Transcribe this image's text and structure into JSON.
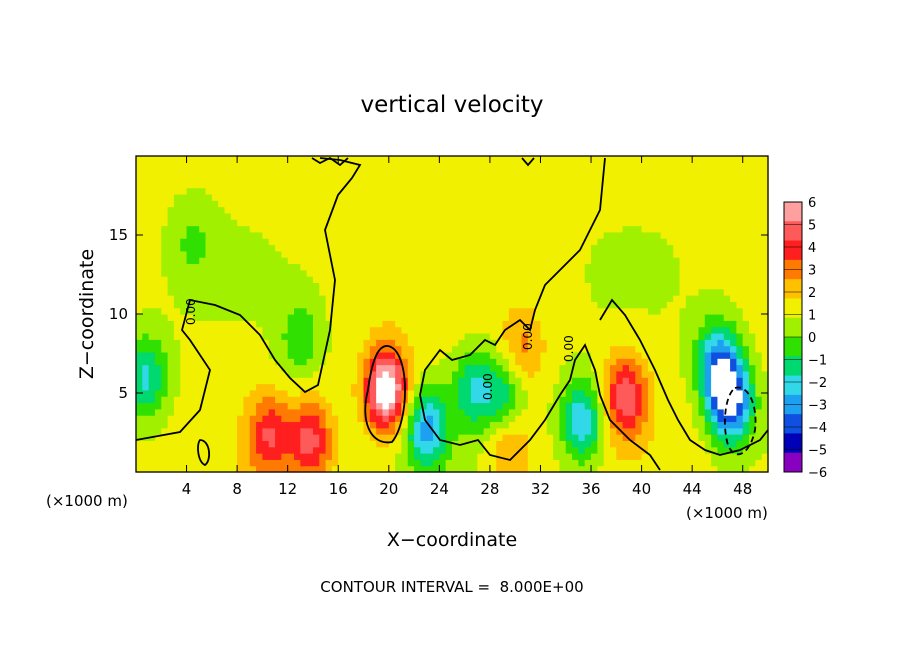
{
  "chart_data": {
    "type": "heatmap",
    "title": "vertical velocity",
    "xlabel": "X−coordinate",
    "ylabel": "Z−coordinate",
    "x_unit_left": "(×1000 m)",
    "x_unit_right": "(×1000 m)",
    "xlim": [
      0,
      50
    ],
    "ylim": [
      0,
      20
    ],
    "xticks": [
      4,
      8,
      12,
      16,
      20,
      24,
      28,
      32,
      36,
      40,
      44,
      48
    ],
    "yticks": [
      5,
      10,
      15
    ],
    "colorbar_levels": [
      6,
      5,
      4,
      3,
      2,
      1,
      0,
      -1,
      -2,
      -3,
      -4,
      -5,
      -6
    ],
    "colorbar_colors": [
      "#ffa0a0",
      "#ff5a5a",
      "#ff1f1f",
      "#ff7a00",
      "#ffc000",
      "#f0f000",
      "#a0f000",
      "#30e000",
      "#00d870",
      "#30d8e8",
      "#1ea0f0",
      "#1050e0",
      "#0000b8",
      "#8800c0"
    ],
    "contour_label": "0.00",
    "contour_interval_text": "CONTOUR INTERVAL =  8.000E+00",
    "features": [
      {
        "x": 19.8,
        "z": 5.2,
        "w": 7
      },
      {
        "x": 10.5,
        "z": 2.3,
        "w": 3.5
      },
      {
        "x": 13.8,
        "z": 2.0,
        "w": 4
      },
      {
        "x": 38.7,
        "z": 4.8,
        "w": 4.5
      },
      {
        "x": 29.5,
        "z": 2.0,
        "w": 2.5
      },
      {
        "x": 30.6,
        "z": 7.8,
        "w": 2
      },
      {
        "x": 47.0,
        "z": 4.5,
        "w": -7
      },
      {
        "x": 46.0,
        "z": 7.0,
        "w": -4.5
      },
      {
        "x": 0.8,
        "z": 6.0,
        "w": -3.5
      },
      {
        "x": 35.3,
        "z": 3.2,
        "w": -4.5
      },
      {
        "x": 23.0,
        "z": 2.8,
        "w": -4.5
      },
      {
        "x": 26.7,
        "z": 5.3,
        "w": -3.2
      },
      {
        "x": 29.2,
        "z": 4.5,
        "w": -3.2
      },
      {
        "x": 13.0,
        "z": 8.5,
        "w": -2
      },
      {
        "x": 4.5,
        "z": 14.5,
        "w": -1.3
      }
    ]
  }
}
